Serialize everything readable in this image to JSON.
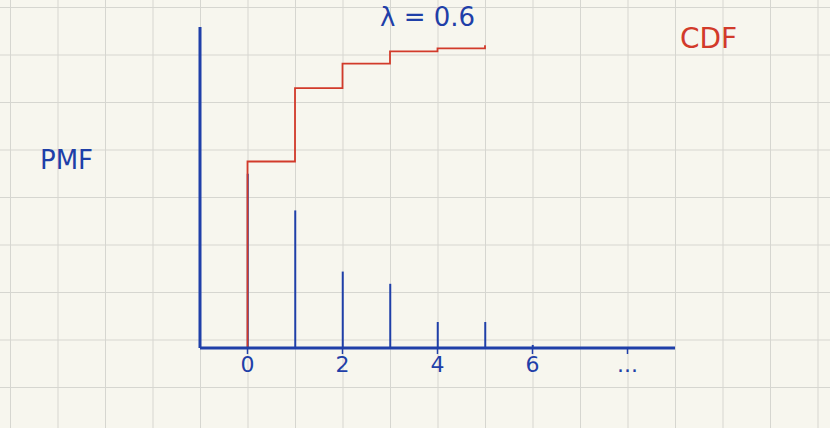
{
  "chart_data": {
    "type": "stem",
    "title": "λ = 0.6",
    "xlim": [
      -1,
      9
    ],
    "xticks": [
      0,
      2,
      4,
      6,
      {
        "value": 8,
        "label": "..."
      }
    ],
    "ylim": [
      0,
      1.05
    ],
    "tick_labels": "x",
    "grid": true,
    "series": [
      {
        "name": "PMF",
        "type": "stem",
        "color": "#1f3fa8",
        "x": [
          0,
          1,
          2,
          3,
          4,
          5,
          6
        ],
        "values": [
          0.57,
          0.45,
          0.25,
          0.21,
          0.085,
          0.085,
          0.01
        ]
      },
      {
        "name": "CDF",
        "type": "step",
        "color": "#d23a2a",
        "x": [
          -1,
          0,
          1,
          2,
          3,
          4,
          5
        ],
        "values": [
          0,
          0.61,
          0.85,
          0.93,
          0.97,
          0.98,
          0.99
        ]
      }
    ]
  }
}
